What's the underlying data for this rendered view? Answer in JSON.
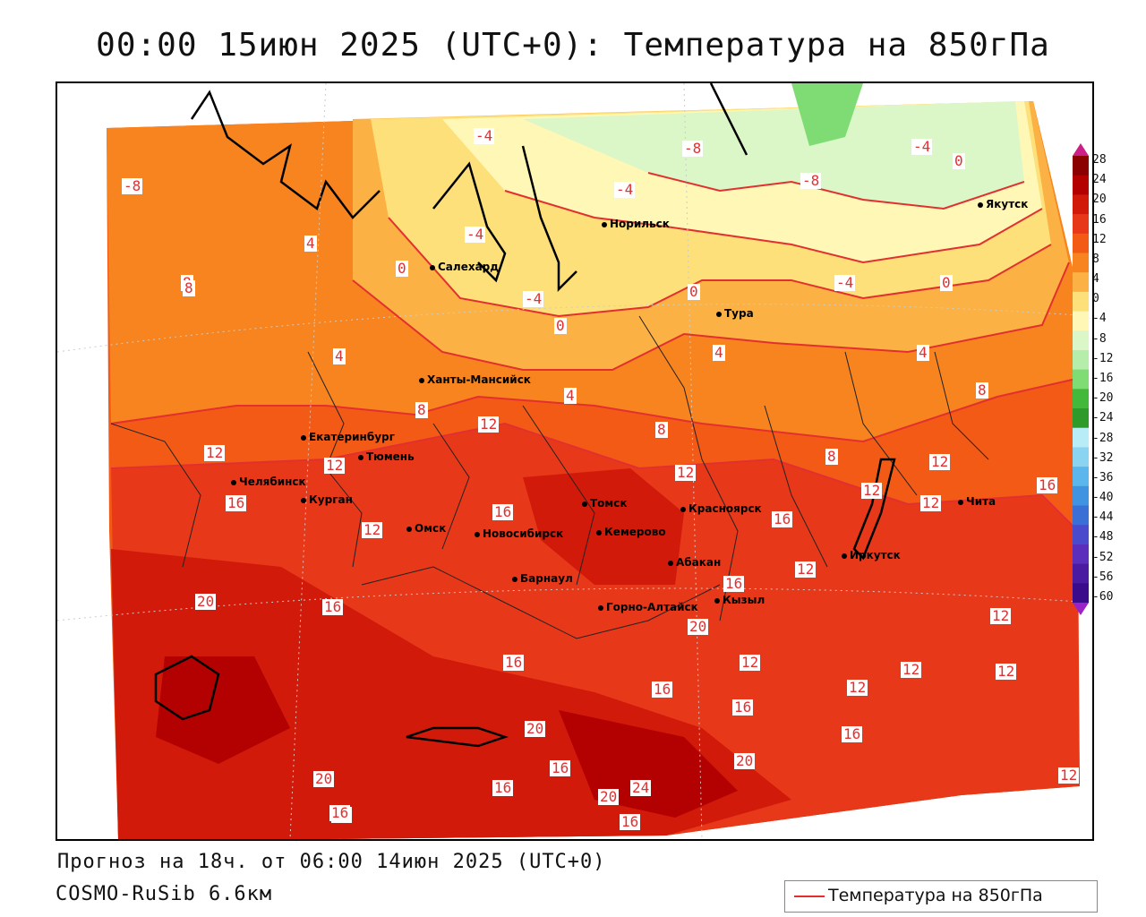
{
  "title": "00:00 15июн 2025 (UTC+0): Температура на 850гПа",
  "footer": {
    "forecast": "Прогноз на 18ч. от 06:00 14июн 2025 (UTC+0)",
    "model": "COSMO-RuSib 6.6км"
  },
  "legend": {
    "label": "Температура на 850гПа",
    "color": "#e23030"
  },
  "colorbar": {
    "ticks": [
      "28",
      "24",
      "20",
      "16",
      "12",
      "8",
      "4",
      "0",
      "-4",
      "-8",
      "-12",
      "-16",
      "-20",
      "-24",
      "-28",
      "-32",
      "-36",
      "-40",
      "-44",
      "-48",
      "-52",
      "-56",
      "-60"
    ],
    "colors": [
      "#8b0000",
      "#b30000",
      "#d11a0a",
      "#e8381a",
      "#f25a16",
      "#f7841f",
      "#fbb143",
      "#fde07a",
      "#fef7b5",
      "#dbf7c7",
      "#b5edaa",
      "#7fdc74",
      "#43b83a",
      "#2d9a2a",
      "#b8ecf6",
      "#8ad4f2",
      "#5ab6ec",
      "#3f93e0",
      "#3a6fd6",
      "#4a4bcc",
      "#5b2fbc",
      "#4a1aa0",
      "#3a0b8a"
    ],
    "top_color": "#cc1f8a",
    "bottom_color": "#9b22c6"
  },
  "cities": [
    {
      "name": "Якутск"
    },
    {
      "name": "Норильск"
    },
    {
      "name": "Салехард"
    },
    {
      "name": "Тура"
    },
    {
      "name": "Ханты-Мансийск"
    },
    {
      "name": "Екатеринбург"
    },
    {
      "name": "Тюмень"
    },
    {
      "name": "Челябинск"
    },
    {
      "name": "Курган"
    },
    {
      "name": "Омск"
    },
    {
      "name": "Новосибирск"
    },
    {
      "name": "Томск"
    },
    {
      "name": "Кемерово"
    },
    {
      "name": "Красноярск"
    },
    {
      "name": "Абакан"
    },
    {
      "name": "Барнаул"
    },
    {
      "name": "Горно-Алтайск"
    },
    {
      "name": "Кызыл"
    },
    {
      "name": "Иркутск"
    },
    {
      "name": "Чита"
    }
  ],
  "contour_labels": [
    "-4",
    "-8",
    "-8",
    "-8",
    "-4",
    "0",
    "-4",
    "-4",
    "-4",
    "0",
    "0",
    "-4",
    "0",
    "4",
    "8",
    "4",
    "0",
    "4",
    "4",
    "4",
    "8",
    "8",
    "8",
    "12",
    "8",
    "8",
    "12",
    "12",
    "12",
    "12",
    "12",
    "16",
    "16",
    "16",
    "16",
    "12",
    "12",
    "12",
    "16",
    "20",
    "16",
    "16",
    "20",
    "16",
    "12",
    "12",
    "12",
    "16",
    "12",
    "12",
    "16",
    "16",
    "20",
    "16",
    "20",
    "16",
    "16",
    "20",
    "20",
    "24",
    "16",
    "12"
  ]
}
